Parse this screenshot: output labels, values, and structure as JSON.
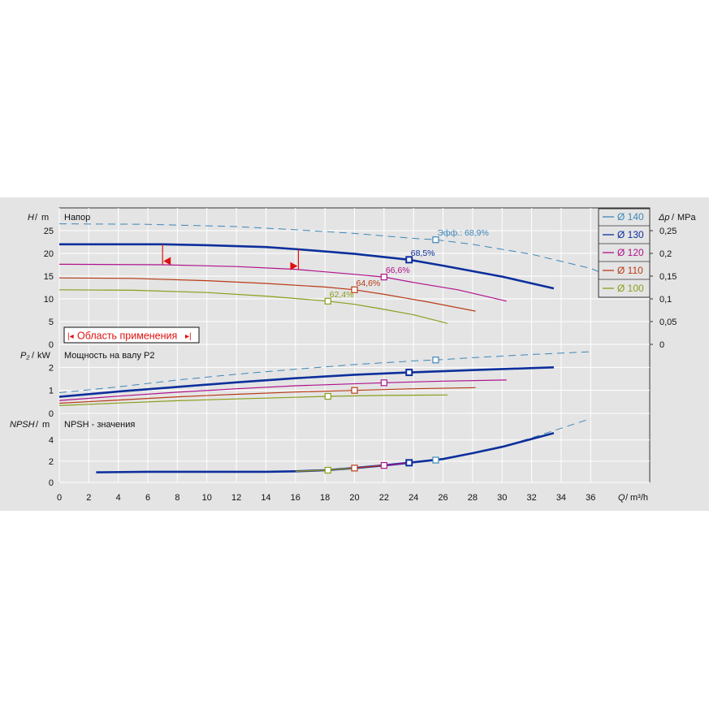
{
  "panels": {
    "head": {
      "title": "Напор",
      "ylabel_main": "H",
      "ylabel_unit": "m",
      "rlabel_main": "Δp",
      "rlabel_unit": "MPa"
    },
    "power": {
      "title": "Мощность на валу P2",
      "ylabel_main": "P₂",
      "ylabel_unit": "kW"
    },
    "npsh": {
      "title": "NPSH - значения",
      "ylabel_main": "NPSH",
      "ylabel_unit": "m"
    },
    "xaxis": {
      "label_main": "Q",
      "label_unit": "m³/h"
    }
  },
  "application_range": {
    "label": "Область применения",
    "q_min": 7.0,
    "q_max": 16.2
  },
  "colors": {
    "d140": "#3d86b8",
    "d130": "#0c2f9c",
    "d120": "#b0128d",
    "d110": "#b83a16",
    "d100": "#8a9e1c",
    "bg": "#e4e4e4",
    "grid": "#ffffff",
    "range": "#e01010"
  },
  "legend": [
    {
      "label": "Ø 140",
      "color": "#3d86b8"
    },
    {
      "label": "Ø 130",
      "color": "#0c2f9c"
    },
    {
      "label": "Ø 120",
      "color": "#b0128d"
    },
    {
      "label": "Ø 110",
      "color": "#b83a16"
    },
    {
      "label": "Ø 100",
      "color": "#8a9e1c"
    }
  ],
  "chart_data": [
    {
      "type": "line",
      "title": "Напор",
      "xlabel": "Q / m³/h",
      "ylabel": "H / m",
      "y2label": "Δp / MPa",
      "xlim": [
        0,
        40
      ],
      "ylim": [
        0,
        30
      ],
      "y2lim": [
        0,
        0.3
      ],
      "x_ticks": [
        0,
        2,
        4,
        6,
        8,
        10,
        12,
        14,
        16,
        18,
        20,
        22,
        24,
        26,
        28,
        30,
        32,
        34,
        36
      ],
      "y_ticks": [
        0,
        5,
        10,
        15,
        20,
        25
      ],
      "y2_ticks": [
        "0",
        "0,05",
        "0,1",
        "0,15",
        "0,2",
        "0,25"
      ],
      "grid": true,
      "legend_position": "top-right",
      "series": [
        {
          "name": "Ø 140",
          "style": "dashed-thin",
          "x": [
            0,
            6,
            12,
            16,
            20,
            24,
            25.5,
            28,
            32,
            36,
            37
          ],
          "y": [
            26.5,
            26.4,
            25.9,
            25.2,
            24.4,
            23.3,
            23.0,
            22.0,
            19.8,
            16.7,
            15.4
          ]
        },
        {
          "name": "Ø 130",
          "style": "solid-thick",
          "x": [
            0,
            7,
            10,
            14,
            16.2,
            20,
            23.7,
            26,
            30,
            33.5
          ],
          "y": [
            22.0,
            22.0,
            21.8,
            21.4,
            20.9,
            19.9,
            18.6,
            17.3,
            14.9,
            12.3
          ]
        },
        {
          "name": "Ø 120",
          "style": "solid",
          "x": [
            0,
            7,
            12,
            16,
            20,
            22,
            24,
            27,
            30.3
          ],
          "y": [
            17.6,
            17.5,
            17.1,
            16.5,
            15.4,
            14.8,
            13.6,
            12.0,
            9.5
          ]
        },
        {
          "name": "Ø 110",
          "style": "solid",
          "x": [
            0,
            5,
            10,
            14,
            18,
            20,
            22,
            25,
            28.2
          ],
          "y": [
            14.6,
            14.5,
            14.0,
            13.4,
            12.6,
            12.0,
            11.0,
            9.3,
            7.3
          ]
        },
        {
          "name": "Ø 100",
          "style": "solid",
          "x": [
            0,
            5,
            10,
            14,
            18.2,
            20,
            22,
            24,
            26.3
          ],
          "y": [
            12.0,
            11.9,
            11.4,
            10.6,
            9.5,
            8.8,
            7.7,
            6.5,
            4.6
          ]
        }
      ],
      "points": [
        {
          "series": "Ø 140",
          "x": 25.5,
          "y": 23.0,
          "label": "Эфф.: 68,9%"
        },
        {
          "series": "Ø 130",
          "x": 23.7,
          "y": 18.6,
          "label": "68,5%"
        },
        {
          "series": "Ø 120",
          "x": 22.0,
          "y": 14.8,
          "label": "66,6%"
        },
        {
          "series": "Ø 110",
          "x": 20.0,
          "y": 12.0,
          "label": "64,6%"
        },
        {
          "series": "Ø 100",
          "x": 18.2,
          "y": 9.5,
          "label": "62,4%"
        }
      ]
    },
    {
      "type": "line",
      "title": "Мощность на валу P2",
      "ylabel": "P₂ / kW",
      "xlim": [
        0,
        40
      ],
      "ylim": [
        0,
        3.0
      ],
      "y_ticks": [
        0,
        1,
        2
      ],
      "grid": true,
      "series": [
        {
          "name": "Ø 140",
          "style": "dashed-thin",
          "x": [
            0,
            4,
            8,
            12,
            16,
            20,
            24,
            25.5,
            28,
            32,
            36
          ],
          "y": [
            0.9,
            1.15,
            1.45,
            1.7,
            1.92,
            2.12,
            2.28,
            2.32,
            2.42,
            2.56,
            2.68
          ]
        },
        {
          "name": "Ø 130",
          "style": "solid-thick",
          "x": [
            0,
            4,
            8,
            12,
            16,
            20,
            23.7,
            28,
            33.5
          ],
          "y": [
            0.72,
            0.95,
            1.15,
            1.35,
            1.53,
            1.68,
            1.78,
            1.88,
            2.0
          ]
        },
        {
          "name": "Ø 120",
          "style": "solid",
          "x": [
            0,
            4,
            8,
            12,
            16,
            22,
            26,
            30.3
          ],
          "y": [
            0.56,
            0.75,
            0.92,
            1.07,
            1.2,
            1.33,
            1.4,
            1.45
          ]
        },
        {
          "name": "Ø 110",
          "style": "solid",
          "x": [
            0,
            4,
            8,
            12,
            16,
            20,
            24,
            28.2
          ],
          "y": [
            0.44,
            0.58,
            0.72,
            0.83,
            0.93,
            1.0,
            1.07,
            1.12
          ]
        },
        {
          "name": "Ø 100",
          "style": "solid",
          "x": [
            0,
            4,
            8,
            12,
            16,
            18.2,
            22,
            26.3
          ],
          "y": [
            0.34,
            0.45,
            0.55,
            0.63,
            0.7,
            0.74,
            0.78,
            0.8
          ]
        }
      ],
      "points": [
        {
          "series": "Ø 140",
          "x": 25.5,
          "y": 2.32
        },
        {
          "series": "Ø 130",
          "x": 23.7,
          "y": 1.78
        },
        {
          "series": "Ø 120",
          "x": 22.0,
          "y": 1.33
        },
        {
          "series": "Ø 110",
          "x": 20.0,
          "y": 1.0
        },
        {
          "series": "Ø 100",
          "x": 18.2,
          "y": 0.74
        }
      ]
    },
    {
      "type": "line",
      "title": "NPSH - значения",
      "ylabel": "NPSH / m",
      "xlim": [
        0,
        40
      ],
      "ylim": [
        0,
        6.5
      ],
      "y_ticks": [
        0,
        2,
        4
      ],
      "grid": true,
      "series": [
        {
          "name": "Ø 140",
          "style": "dashed-thin",
          "x": [
            24,
            26,
            28,
            30,
            32,
            34,
            36
          ],
          "y": [
            1.9,
            2.2,
            2.75,
            3.35,
            4.2,
            5.1,
            6.0
          ]
        },
        {
          "name": "Ø 130",
          "style": "solid-thick",
          "x": [
            2.5,
            6,
            10,
            14,
            16,
            18,
            20,
            22,
            23.7,
            26,
            28,
            30,
            33.5
          ],
          "y": [
            0.95,
            1.0,
            1.0,
            1.0,
            1.05,
            1.15,
            1.35,
            1.6,
            1.85,
            2.2,
            2.75,
            3.35,
            4.65
          ]
        },
        {
          "name": "Ø 120",
          "style": "solid",
          "x": [
            16,
            18,
            20,
            22,
            24
          ],
          "y": [
            1.05,
            1.15,
            1.35,
            1.6,
            1.9
          ]
        },
        {
          "name": "Ø 110",
          "style": "solid",
          "x": [
            16,
            18,
            20,
            22
          ],
          "y": [
            1.05,
            1.15,
            1.35,
            1.6
          ]
        },
        {
          "name": "Ø 100",
          "style": "solid",
          "x": [
            16,
            18,
            20
          ],
          "y": [
            1.05,
            1.15,
            1.35
          ]
        }
      ],
      "points": [
        {
          "series": "Ø 140",
          "x": 25.5,
          "y": 2.1
        },
        {
          "series": "Ø 130",
          "x": 23.7,
          "y": 1.85
        },
        {
          "series": "Ø 120",
          "x": 22.0,
          "y": 1.6
        },
        {
          "series": "Ø 110",
          "x": 20.0,
          "y": 1.35
        },
        {
          "series": "Ø 100",
          "x": 18.2,
          "y": 1.15
        }
      ]
    }
  ]
}
